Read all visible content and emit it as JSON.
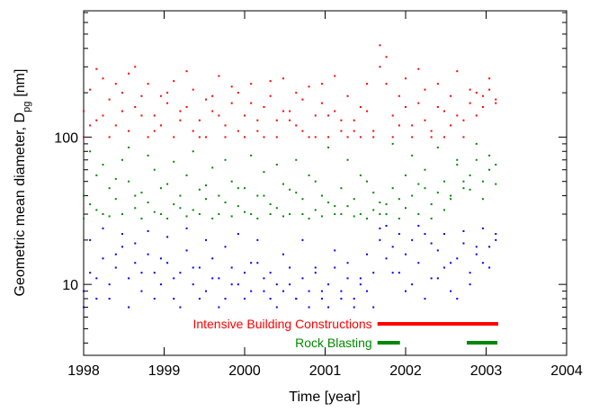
{
  "chart_data": {
    "type": "scatter",
    "x_label": "Time [year]",
    "y_label": "Geometric mean diameter, D",
    "y_label_subscript": "pg",
    "y_label_unit": "[nm]",
    "xlim": [
      1998,
      2004
    ],
    "xticks": [
      1998,
      1999,
      2000,
      2001,
      2002,
      2003,
      2004
    ],
    "ylim": [
      3.3,
      720
    ],
    "yticks": [
      10,
      100
    ],
    "yminor": [
      4,
      5,
      6,
      7,
      8,
      9,
      20,
      30,
      40,
      50,
      60,
      70,
      80,
      90,
      200,
      300,
      400,
      500,
      600,
      700
    ],
    "log_y": true,
    "x": [
      1998.0,
      1998.08,
      1998.16,
      1998.24,
      1998.32,
      1998.4,
      1998.48,
      1998.56,
      1998.64,
      1998.72,
      1998.8,
      1998.88,
      1998.96,
      1999.04,
      1999.12,
      1999.2,
      1999.28,
      1999.36,
      1999.44,
      1999.52,
      1999.6,
      1999.68,
      1999.76,
      1999.84,
      1999.92,
      2000.0,
      2000.08,
      2000.16,
      2000.24,
      2000.32,
      2000.4,
      2000.48,
      2000.56,
      2000.64,
      2000.72,
      2000.8,
      2000.88,
      2000.96,
      2001.04,
      2001.12,
      2001.2,
      2001.28,
      2001.36,
      2001.44,
      2001.52,
      2001.6,
      2001.68,
      2001.76,
      2001.84,
      2001.92,
      2002.0,
      2002.08,
      2002.16,
      2002.24,
      2002.32,
      2002.4,
      2002.48,
      2002.56,
      2002.64,
      2002.72,
      2002.8,
      2002.88,
      2002.96,
      2003.04,
      2003.12
    ],
    "series": [
      {
        "color": "#ff0000",
        "values": [
          150,
          210,
          130,
          250,
          180,
          120,
          200,
          270,
          160,
          140,
          230,
          110,
          190,
          170,
          240,
          130,
          160,
          210,
          100,
          180,
          150,
          260,
          120,
          170,
          200,
          140,
          230,
          110,
          160,
          190,
          130,
          250,
          150,
          120,
          180,
          220,
          100,
          170,
          140,
          260,
          130,
          190,
          110,
          160,
          230,
          100,
          420,
          350,
          140,
          190,
          250,
          120,
          170,
          210,
          100,
          230,
          150,
          190,
          280,
          130,
          170,
          200,
          160,
          210,
          180
        ]
      },
      {
        "color": "#ff0000",
        "values": [
          100,
          120,
          290,
          140,
          100,
          230,
          150,
          110,
          300,
          190,
          100,
          140,
          120,
          200,
          100,
          150,
          280,
          110,
          130,
          100,
          190,
          140,
          100,
          220,
          110,
          100,
          170,
          130,
          100,
          240,
          100,
          150,
          130,
          200,
          110,
          100,
          140,
          230,
          100,
          150,
          110,
          100,
          130,
          100,
          150,
          110,
          300,
          230,
          100,
          120,
          160,
          100,
          290,
          130,
          110,
          160,
          100,
          120,
          140,
          100,
          210,
          140,
          190,
          250,
          170
        ]
      },
      {
        "color": "#008800",
        "values": [
          40,
          35,
          55,
          30,
          45,
          38,
          70,
          50,
          33,
          42,
          36,
          60,
          30,
          48,
          35,
          40,
          55,
          32,
          44,
          38,
          62,
          30,
          36,
          50,
          34,
          45,
          30,
          40,
          58,
          35,
          33,
          48,
          30,
          42,
          38,
          55,
          32,
          40,
          36,
          30,
          45,
          34,
          38,
          30,
          50,
          42,
          30,
          35,
          45,
          38,
          55,
          40,
          48,
          60,
          35,
          42,
          50,
          38,
          65,
          45,
          55,
          70,
          50,
          60,
          65
        ]
      },
      {
        "color": "#008800",
        "values": [
          28,
          80,
          32,
          65,
          29,
          52,
          30,
          85,
          40,
          28,
          75,
          31,
          45,
          28,
          68,
          33,
          29,
          80,
          30,
          47,
          28,
          40,
          70,
          29,
          45,
          31,
          75,
          28,
          40,
          30,
          65,
          29,
          44,
          70,
          30,
          28,
          50,
          29,
          85,
          34,
          30,
          70,
          29,
          55,
          28,
          32,
          36,
          30,
          90,
          28,
          33,
          75,
          30,
          45,
          28,
          85,
          32,
          40,
          70,
          50,
          44,
          90,
          38,
          75,
          48
        ]
      },
      {
        "color": "#0000ff",
        "values": [
          9,
          12,
          8,
          15,
          10,
          13,
          18,
          11,
          14,
          9,
          16,
          12,
          10,
          14,
          8,
          12,
          17,
          10,
          13,
          9,
          15,
          11,
          8,
          13,
          10,
          12,
          9,
          14,
          11,
          8,
          10,
          9,
          13,
          8,
          11,
          9,
          12,
          8,
          10,
          13,
          9,
          11,
          8,
          10,
          9,
          12,
          20,
          15,
          18,
          12,
          16,
          10,
          14,
          22,
          11,
          17,
          13,
          9,
          15,
          19,
          12,
          16,
          14,
          18,
          20
        ]
      },
      {
        "color": "#0000ff",
        "values": [
          7,
          20,
          11,
          24,
          8,
          16,
          22,
          7,
          19,
          12,
          23,
          8,
          15,
          21,
          11,
          7,
          24,
          13,
          8,
          20,
          11,
          7,
          18,
          10,
          22,
          8,
          14,
          20,
          9,
          12,
          7,
          16,
          10,
          8,
          20,
          7,
          13,
          9,
          7,
          17,
          8,
          14,
          7,
          11,
          16,
          7,
          24,
          25,
          12,
          22,
          9,
          20,
          25,
          8,
          19,
          11,
          22,
          14,
          8,
          23,
          10,
          18,
          24,
          13,
          22
        ]
      }
    ],
    "periods": [
      {
        "label": "Intensive Building Constructions",
        "color": "#ff0000",
        "spans": [
          [
            2001.65,
            2003.15
          ]
        ]
      },
      {
        "label": "Rock Blasting",
        "color": "#008800",
        "spans": [
          [
            2001.65,
            2001.93
          ],
          [
            2002.76,
            2003.14
          ]
        ]
      }
    ]
  }
}
